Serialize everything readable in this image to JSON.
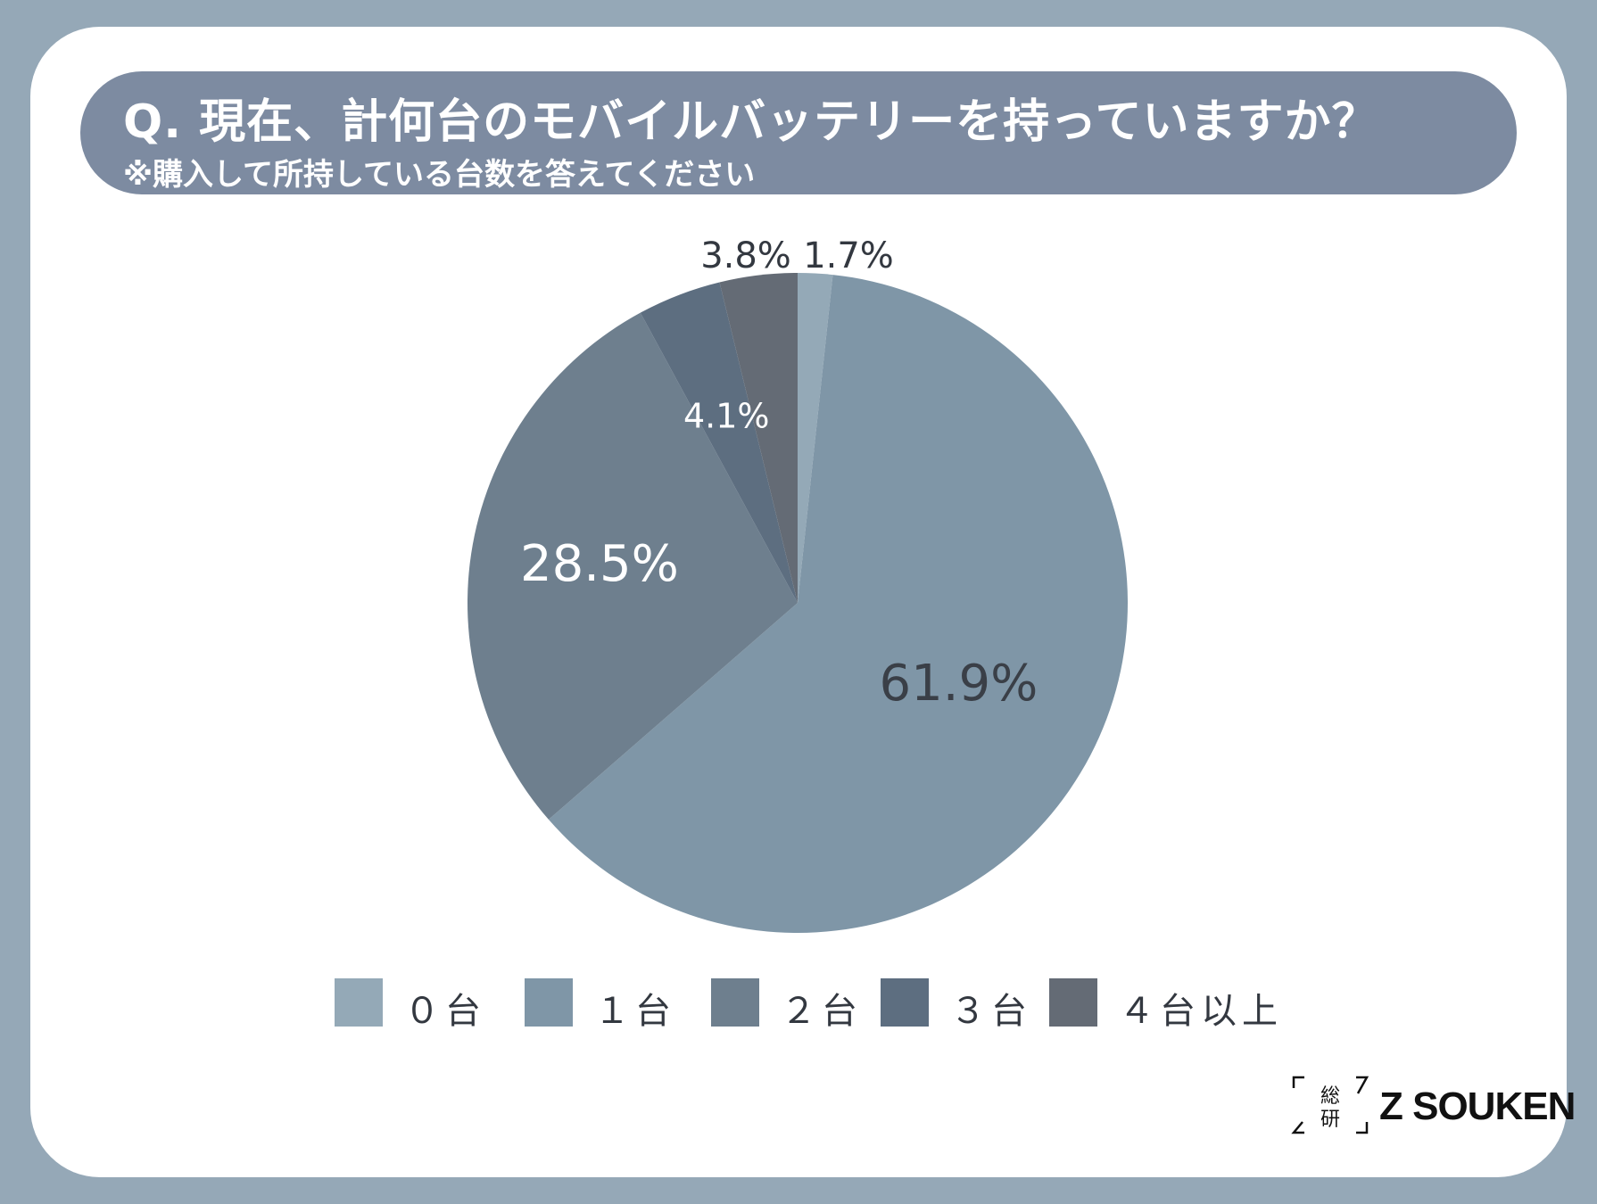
{
  "title": "Q. 現在、計何台のモバイルバッテリーを持っていますか？",
  "subtitle": "※購入して所持している台数を答えてください",
  "chart_data": {
    "type": "pie",
    "categories": [
      "0台",
      "1台",
      "2台",
      "3台",
      "4台以上"
    ],
    "values": [
      1.7,
      61.9,
      28.5,
      4.1,
      3.8
    ],
    "labels": [
      "1.7%",
      "61.9%",
      "28.5%",
      "4.1%",
      "3.8%"
    ],
    "colors": [
      "#94a9b7",
      "#7f96a7",
      "#6e7f8e",
      "#5d6e80",
      "#646b75"
    ],
    "label_colors": [
      "#333840",
      "#3a3f47",
      "#ffffff",
      "#ffffff",
      "#333840"
    ],
    "start_angle": "12 o'clock",
    "direction": "clockwise",
    "legend_position": "bottom"
  },
  "legend": [
    {
      "label": "０台",
      "color": "#94a9b7"
    },
    {
      "label": "１台",
      "color": "#7f96a7"
    },
    {
      "label": "２台",
      "color": "#6e7f8e"
    },
    {
      "label": "３台",
      "color": "#5d6e80"
    },
    {
      "label": "４台以上",
      "color": "#646b75"
    }
  ],
  "logo": {
    "mark": "総研",
    "text": "Z SOUKEN"
  }
}
